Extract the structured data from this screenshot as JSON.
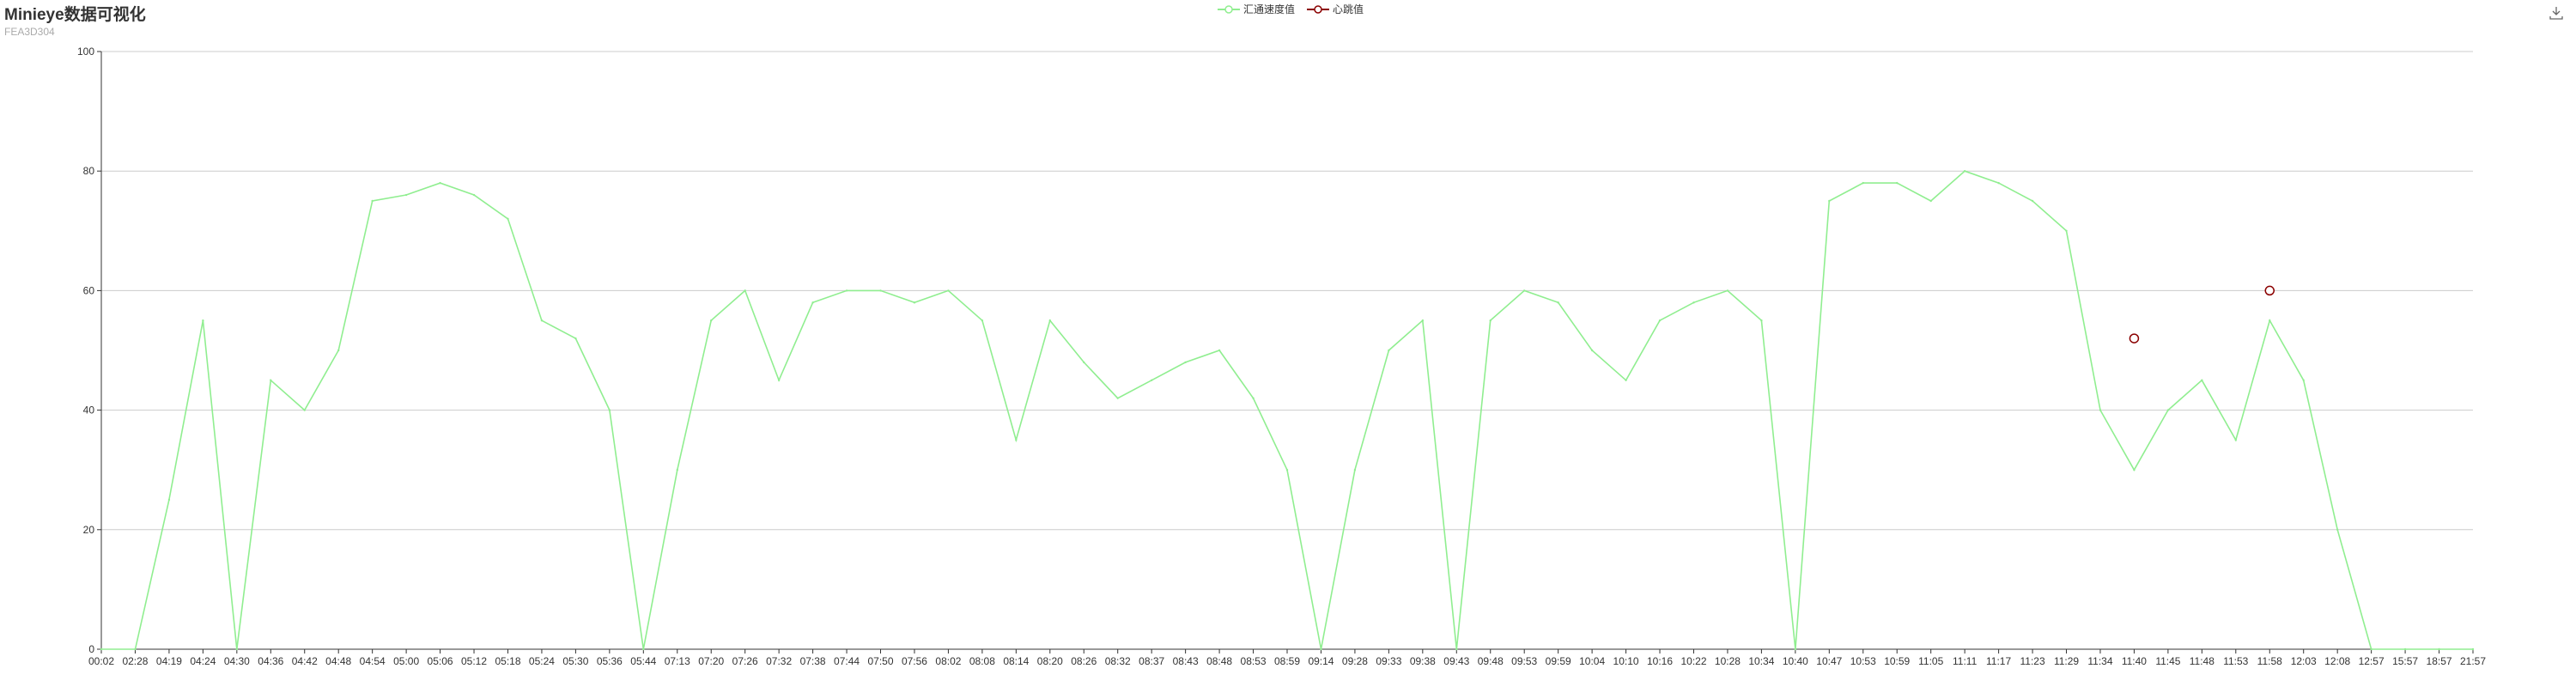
{
  "title": "Minieye数据可视化",
  "subtitle": "FEA3D304",
  "toolbox": {
    "icon": "download-icon"
  },
  "colors": {
    "speed": "#90ee90",
    "heart": "#8b0000",
    "grid": "#cccccc",
    "axis": "#333333"
  },
  "chart_data": {
    "type": "line",
    "title": "Minieye数据可视化",
    "subtitle": "FEA3D304",
    "legend_position": "top-center",
    "grid": true,
    "ylim": [
      0,
      100
    ],
    "yticks": [
      0,
      20,
      40,
      60,
      80,
      100
    ],
    "categories": [
      "00:02",
      "02:28",
      "04:19",
      "04:24",
      "04:30",
      "04:36",
      "04:42",
      "04:48",
      "04:54",
      "05:00",
      "05:06",
      "05:12",
      "05:18",
      "05:24",
      "05:30",
      "05:36",
      "05:44",
      "07:13",
      "07:20",
      "07:26",
      "07:32",
      "07:38",
      "07:44",
      "07:50",
      "07:56",
      "08:02",
      "08:08",
      "08:14",
      "08:20",
      "08:26",
      "08:32",
      "08:37",
      "08:43",
      "08:48",
      "08:53",
      "08:59",
      "09:14",
      "09:28",
      "09:33",
      "09:38",
      "09:43",
      "09:48",
      "09:53",
      "09:59",
      "10:04",
      "10:10",
      "10:16",
      "10:22",
      "10:28",
      "10:34",
      "10:40",
      "10:47",
      "10:53",
      "10:59",
      "11:05",
      "11:11",
      "11:17",
      "11:23",
      "11:29",
      "11:34",
      "11:40",
      "11:45",
      "11:48",
      "11:53",
      "11:58",
      "12:03",
      "12:08",
      "12:57",
      "15:57",
      "18:57",
      "21:57"
    ],
    "series": [
      {
        "name": "汇通速度值",
        "type": "line",
        "values": [
          0,
          0,
          25,
          55,
          0,
          45,
          40,
          50,
          75,
          76,
          78,
          76,
          72,
          55,
          52,
          40,
          0,
          30,
          55,
          60,
          45,
          58,
          60,
          60,
          58,
          60,
          55,
          35,
          55,
          48,
          42,
          45,
          48,
          50,
          42,
          30,
          0,
          30,
          50,
          55,
          0,
          55,
          60,
          58,
          50,
          45,
          55,
          58,
          60,
          55,
          0,
          75,
          78,
          78,
          75,
          80,
          78,
          75,
          70,
          40,
          30,
          40,
          45,
          35,
          55,
          45,
          20,
          0,
          0,
          0,
          0
        ]
      },
      {
        "name": "心跳值",
        "type": "scatter",
        "points": [
          [
            60,
            52
          ],
          [
            64,
            60
          ]
        ]
      }
    ]
  }
}
